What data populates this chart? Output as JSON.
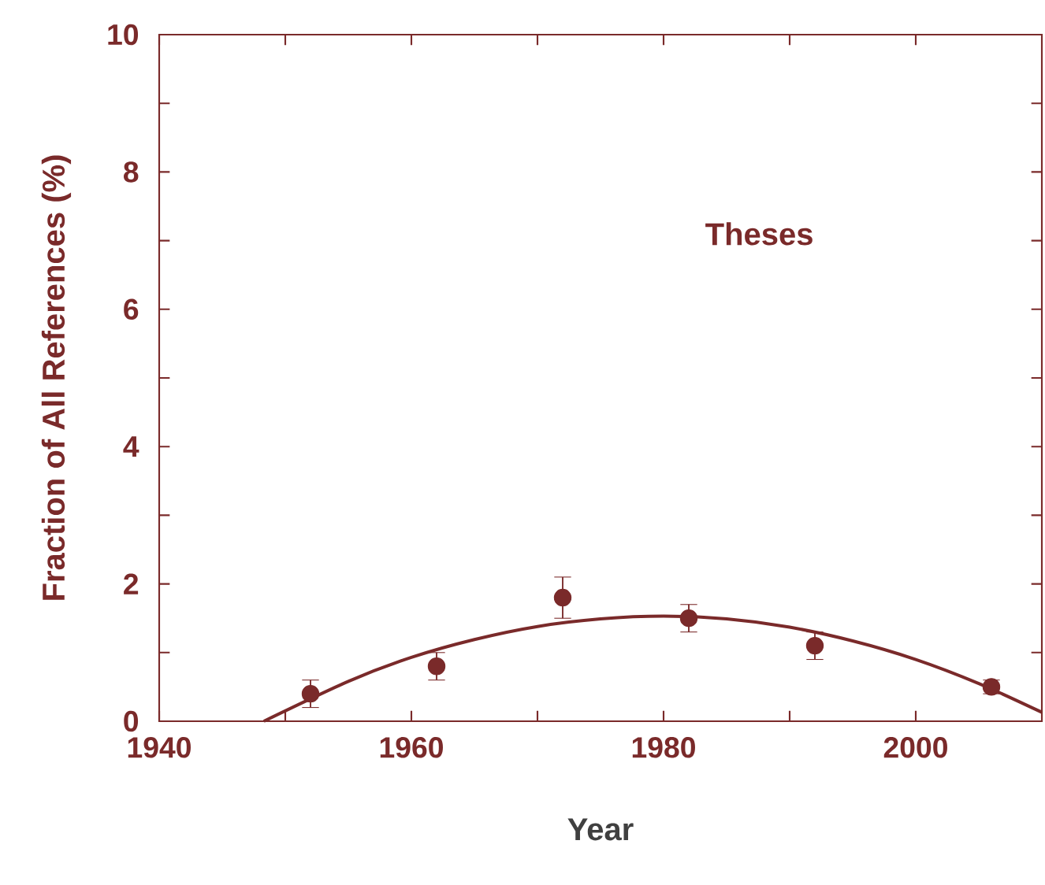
{
  "chart_data": {
    "type": "scatter",
    "xlabel": "Year",
    "ylabel": "Fraction of All References (%)",
    "xlim": [
      1940,
      2010
    ],
    "ylim": [
      0,
      10
    ],
    "xticks": [
      1940,
      {
        "value": 1950,
        "label": null
      },
      1960,
      {
        "value": 1970,
        "label": null
      },
      1980,
      {
        "value": 1990,
        "label": null
      },
      2000
    ],
    "yticks": [
      0,
      {
        "value": 1,
        "label": null
      },
      2,
      {
        "value": 3,
        "label": null
      },
      4,
      {
        "value": 5,
        "label": null
      },
      6,
      {
        "value": 7,
        "label": null
      },
      8,
      {
        "value": 9,
        "label": null
      },
      10
    ],
    "series": [
      {
        "color": "#7a2a2a",
        "x": [
          1952,
          1962,
          1972,
          1982,
          1992,
          2006
        ],
        "values": [
          0.4,
          0.8,
          1.8,
          1.5,
          1.1,
          0.5
        ],
        "errors": [
          0.2,
          0.2,
          0.3,
          0.2,
          0.2,
          0.1
        ],
        "marker": "circle"
      },
      {
        "type": "line",
        "color": "#7a2a2a",
        "x": [
          1948.3,
          1955,
          1960,
          1965,
          1970,
          1975,
          1980,
          1985,
          1990,
          1995,
          2000,
          2005,
          2010
        ],
        "values": [
          0,
          0.58,
          0.93,
          1.19,
          1.38,
          1.49,
          1.53,
          1.49,
          1.37,
          1.17,
          0.9,
          0.55,
          0.13
        ],
        "line_style": "solid",
        "marker": "none"
      }
    ],
    "annotations": [
      "Theses"
    ],
    "grid": false
  }
}
